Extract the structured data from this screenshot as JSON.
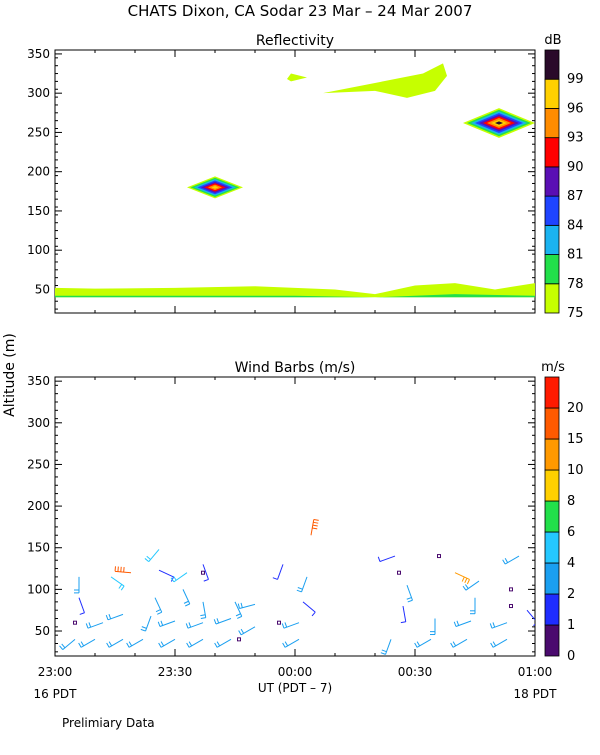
{
  "title": "CHATS Dixon, CA  Sodar  23 Mar – 24 Mar 2007",
  "shared_ylabel": "Altitude (m)",
  "xaxis": {
    "label": "UT  (PDT – 7)",
    "ticks": [
      {
        "t": 0,
        "label": "23:00"
      },
      {
        "t": 30,
        "label": "23:30"
      },
      {
        "t": 60,
        "label": "00:00"
      },
      {
        "t": 90,
        "label": "00:30"
      },
      {
        "t": 120,
        "label": "01:00"
      }
    ],
    "date_left": "16 PDT",
    "date_right": "18 PDT"
  },
  "footer": "Prelimiary Data",
  "chart_data": [
    {
      "type": "heatmap",
      "title": "Reflectivity",
      "ylim": [
        20,
        355
      ],
      "yticks": [
        50,
        100,
        150,
        200,
        250,
        300,
        350
      ],
      "xlim": [
        0,
        120
      ],
      "colorbar": {
        "unit": "dB",
        "levels": [
          75,
          78,
          81,
          84,
          87,
          90,
          93,
          96,
          99
        ],
        "colors": [
          "#c6ff00",
          "#22e04a",
          "#1ab3f0",
          "#1f44ff",
          "#5a0fb4",
          "#ff0000",
          "#ff8c00",
          "#ffd000",
          "#2a0a2a"
        ]
      },
      "features": [
        {
          "kind": "band",
          "level": 75,
          "points": [
            [
              0,
              52
            ],
            [
              10,
              51
            ],
            [
              30,
              52
            ],
            [
              50,
              54
            ],
            [
              70,
              50
            ],
            [
              80,
              44
            ],
            [
              90,
              55
            ],
            [
              100,
              58
            ],
            [
              110,
              50
            ],
            [
              120,
              58
            ],
            [
              120,
              40
            ],
            [
              0,
              40
            ]
          ]
        },
        {
          "kind": "band",
          "level": 78,
          "points": [
            [
              0,
              42
            ],
            [
              60,
              42
            ],
            [
              80,
              40
            ],
            [
              100,
              44
            ],
            [
              120,
              42
            ],
            [
              120,
              40
            ],
            [
              0,
              40
            ]
          ]
        },
        {
          "kind": "blob",
          "x": 40,
          "y": 180,
          "dx": 7,
          "dy": 14,
          "peak": 96
        },
        {
          "kind": "blob",
          "x": 111,
          "y": 262,
          "dx": 9,
          "dy": 19,
          "peak": 99
        },
        {
          "kind": "patch",
          "level": 75,
          "points": [
            [
              59,
              315
            ],
            [
              63,
              320
            ],
            [
              59,
              325
            ],
            [
              58,
              318
            ]
          ]
        },
        {
          "kind": "patch",
          "level": 75,
          "points": [
            [
              67,
              300
            ],
            [
              80,
              303
            ],
            [
              88,
              294
            ],
            [
              95,
              303
            ],
            [
              98,
              322
            ],
            [
              97,
              338
            ],
            [
              92,
              325
            ]
          ]
        }
      ]
    },
    {
      "type": "scatter",
      "title": "Wind Barbs (m/s)",
      "ylim": [
        20,
        355
      ],
      "yticks": [
        50,
        100,
        150,
        200,
        250,
        300,
        350
      ],
      "xlim": [
        0,
        120
      ],
      "colorbar": {
        "unit": "m/s",
        "levels": [
          0,
          1,
          2,
          4,
          6,
          8,
          10,
          15,
          20
        ],
        "colors": [
          "#4a0a6e",
          "#1f2dff",
          "#1a9ff0",
          "#24c8ff",
          "#22e04a",
          "#ffd000",
          "#ff9900",
          "#ff5a00",
          "#ff1a00"
        ]
      },
      "barbs": [
        [
          5,
          40,
          230,
          3
        ],
        [
          5,
          60,
          0,
          0.5
        ],
        [
          6,
          90,
          160,
          1.5
        ],
        [
          6,
          115,
          180,
          3
        ],
        [
          10,
          40,
          240,
          3
        ],
        [
          12,
          60,
          250,
          3
        ],
        [
          14,
          115,
          125,
          4
        ],
        [
          17,
          40,
          240,
          3
        ],
        [
          17,
          70,
          250,
          3
        ],
        [
          19,
          120,
          275,
          18
        ],
        [
          22,
          40,
          240,
          3
        ],
        [
          24,
          68,
          200,
          3
        ],
        [
          25,
          90,
          155,
          3
        ],
        [
          26,
          123,
          115,
          1.5
        ],
        [
          26,
          148,
          220,
          4
        ],
        [
          30,
          40,
          240,
          3
        ],
        [
          30,
          62,
          250,
          3
        ],
        [
          32,
          100,
          155,
          3
        ],
        [
          33,
          120,
          235,
          4
        ],
        [
          37,
          40,
          240,
          3
        ],
        [
          37,
          60,
          250,
          3
        ],
        [
          37,
          85,
          170,
          3
        ],
        [
          37,
          120,
          0,
          0.5
        ],
        [
          37,
          130,
          160,
          1.5
        ],
        [
          44,
          40,
          240,
          3
        ],
        [
          44,
          65,
          250,
          3
        ],
        [
          45,
          85,
          155,
          3
        ],
        [
          46,
          40,
          0,
          0.5
        ],
        [
          50,
          55,
          240,
          3
        ],
        [
          50,
          82,
          255,
          3
        ],
        [
          56,
          60,
          0,
          0.5
        ],
        [
          57,
          130,
          200,
          1.5
        ],
        [
          61,
          40,
          240,
          3
        ],
        [
          61,
          60,
          250,
          3
        ],
        [
          62,
          85,
          130,
          1.5
        ],
        [
          63,
          115,
          200,
          3
        ],
        [
          64,
          165,
          10,
          18
        ],
        [
          84,
          40,
          200,
          3
        ],
        [
          85,
          140,
          250,
          1.5
        ],
        [
          86,
          120,
          0,
          0.5
        ],
        [
          87,
          80,
          170,
          1.5
        ],
        [
          88,
          105,
          160,
          3
        ],
        [
          94,
          40,
          240,
          3
        ],
        [
          95,
          65,
          180,
          3
        ],
        [
          96,
          140,
          0,
          0.5
        ],
        [
          100,
          120,
          115,
          10
        ],
        [
          103,
          40,
          240,
          3
        ],
        [
          104,
          62,
          250,
          3
        ],
        [
          105,
          90,
          180,
          3
        ],
        [
          106,
          110,
          235,
          3
        ],
        [
          113,
          40,
          240,
          3
        ],
        [
          113,
          60,
          250,
          3
        ],
        [
          114,
          80,
          0,
          0.5
        ],
        [
          114,
          100,
          0,
          0.5
        ],
        [
          116,
          140,
          240,
          3
        ],
        [
          118,
          75,
          140,
          1
        ]
      ]
    }
  ]
}
